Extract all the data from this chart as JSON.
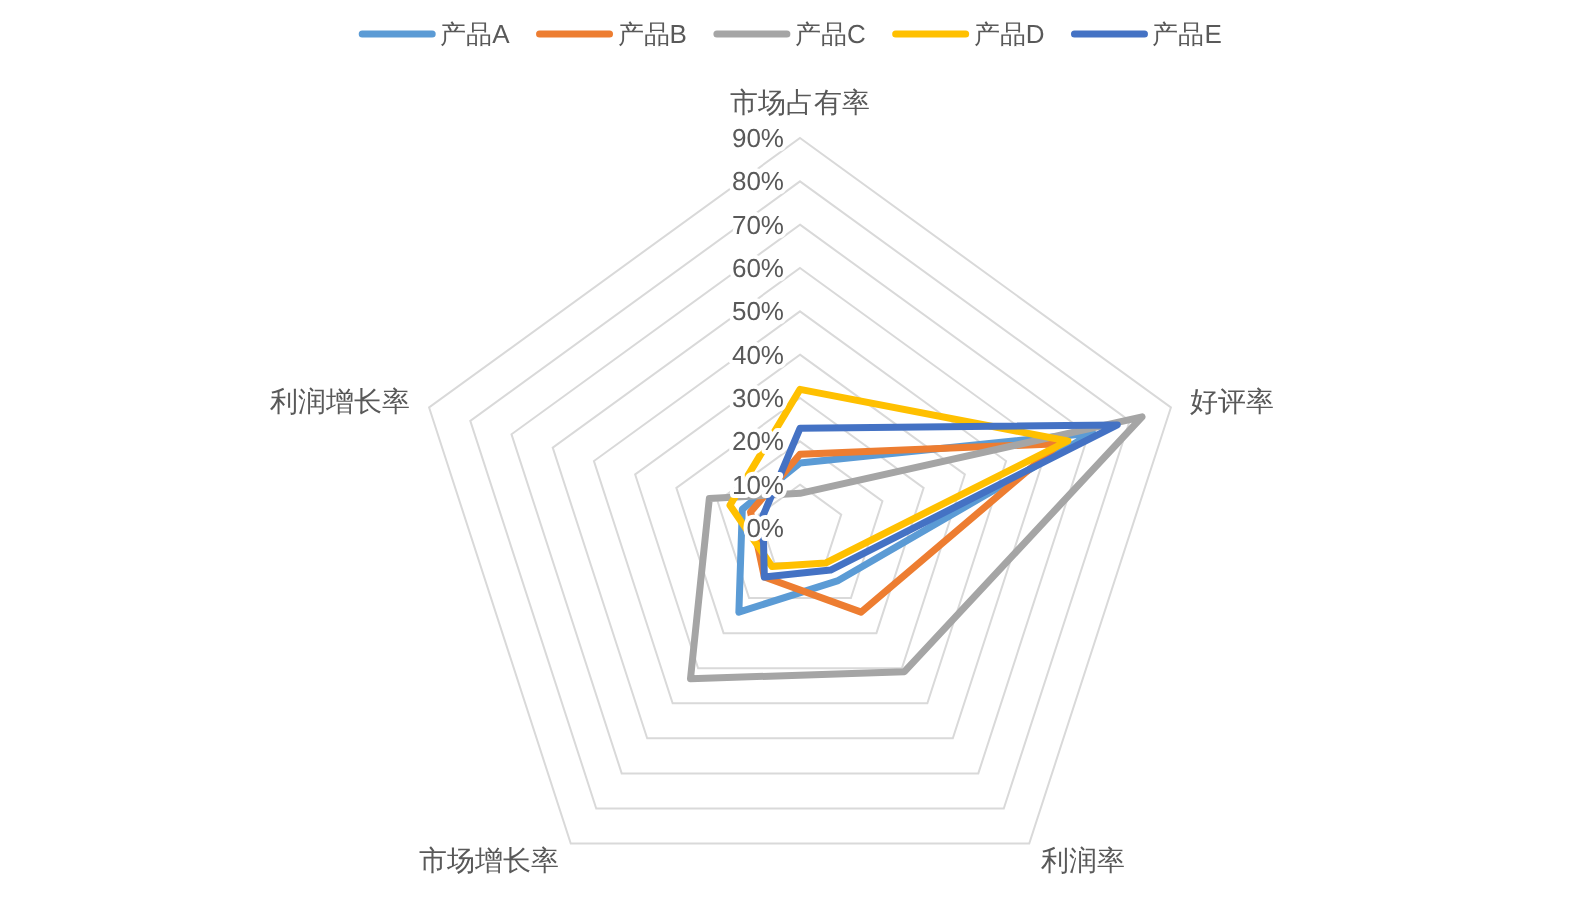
{
  "chart_data": {
    "type": "radar",
    "categories": [
      "市场占有率",
      "好评率",
      "利润率",
      "市场增长率",
      "利润增长率"
    ],
    "series": [
      {
        "name": "产品A",
        "color": "#5b9bd5",
        "values": [
          15,
          71,
          15,
          24,
          14
        ]
      },
      {
        "name": "产品B",
        "color": "#ed7d31",
        "values": [
          17,
          63,
          24,
          14,
          12
        ]
      },
      {
        "name": "产品C",
        "color": "#a5a5a5",
        "values": [
          8,
          83,
          41,
          43,
          22
        ]
      },
      {
        "name": "产品D",
        "color": "#ffc000",
        "values": [
          32,
          65,
          10,
          11,
          17
        ]
      },
      {
        "name": "产品E",
        "color": "#4472c4",
        "values": [
          23,
          77,
          12,
          14,
          9
        ]
      }
    ],
    "ylim": [
      0,
      90
    ],
    "yticks": [
      {
        "value": 0,
        "label": "0%"
      },
      {
        "value": 10,
        "label": "10%"
      },
      {
        "value": 20,
        "label": "20%"
      },
      {
        "value": 30,
        "label": "30%"
      },
      {
        "value": 40,
        "label": "40%"
      },
      {
        "value": 50,
        "label": "50%"
      },
      {
        "value": 60,
        "label": "60%"
      },
      {
        "value": 70,
        "label": "70%"
      },
      {
        "value": 80,
        "label": "80%"
      },
      {
        "value": 90,
        "label": "90%"
      }
    ],
    "grid": true,
    "legend": "top",
    "line_style": "solid",
    "marker": "none"
  }
}
